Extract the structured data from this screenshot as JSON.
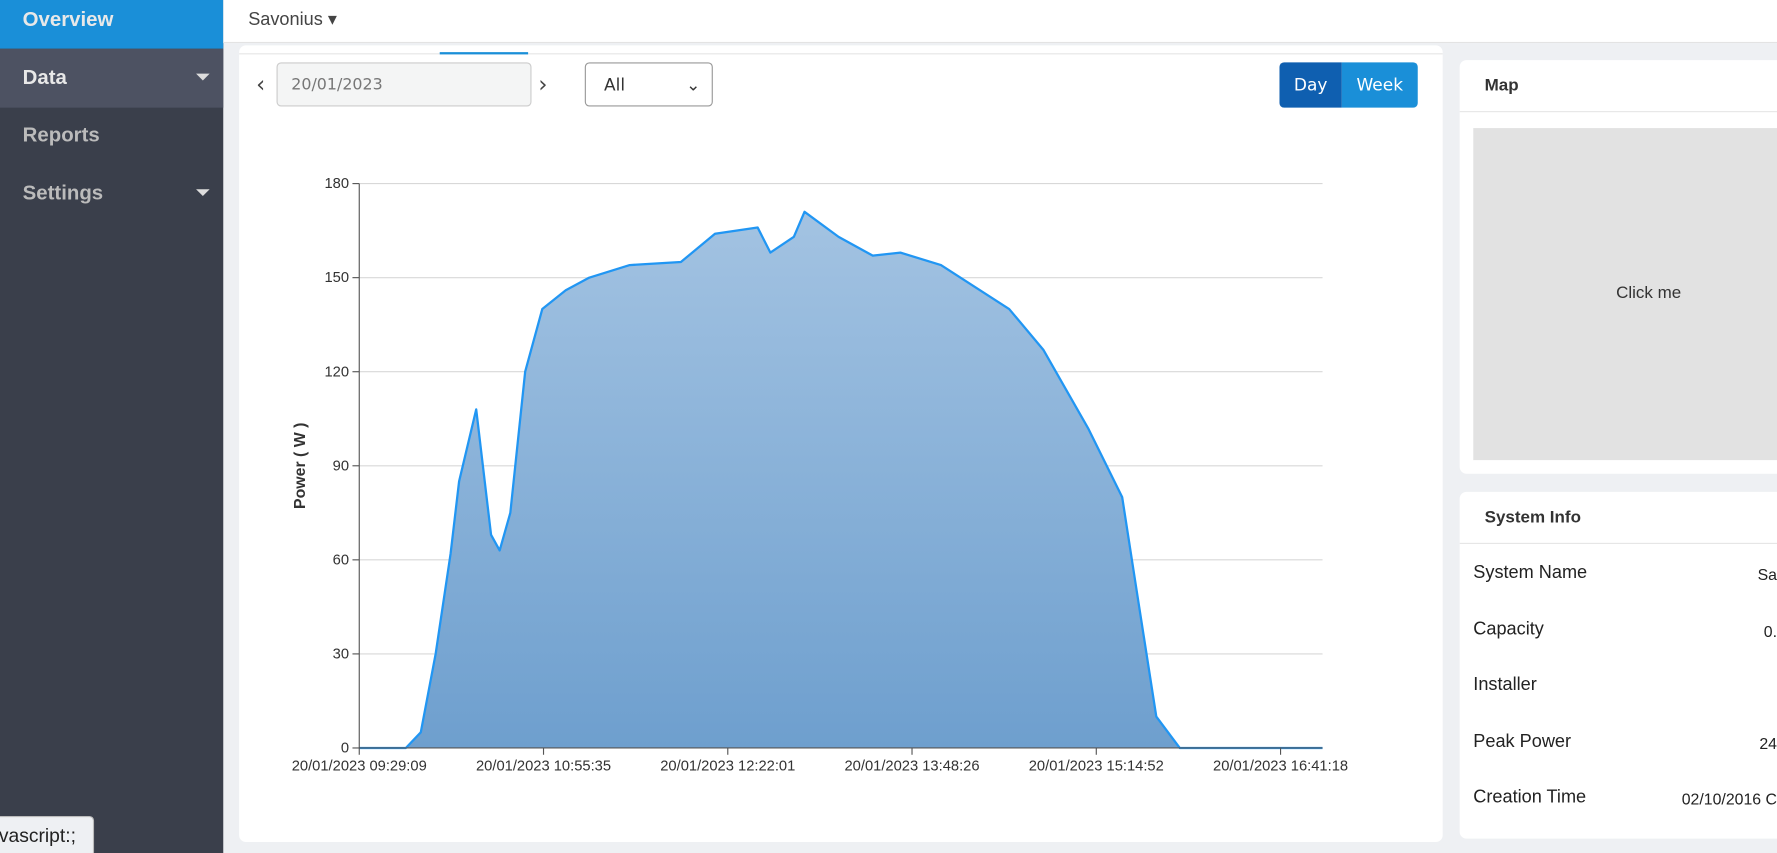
{
  "sidebar": {
    "items": [
      "Overview",
      "Data",
      "Reports",
      "Settings"
    ]
  },
  "header": {
    "site": "Savonius"
  },
  "controls": {
    "date": "20/01/2023",
    "filter": "All",
    "buttons": [
      "Day",
      "Week"
    ]
  },
  "map": {
    "title": "Map",
    "placeholder": "Click me"
  },
  "system_info": {
    "title": "System Info",
    "rows": [
      [
        "System Name",
        "Sa"
      ],
      [
        "Capacity",
        "0."
      ],
      [
        "Installer",
        ""
      ],
      [
        "Peak Power",
        "24"
      ],
      [
        "Creation Time",
        "02/10/2016 C"
      ]
    ]
  },
  "status_bar": "vascript:;",
  "chart_data": {
    "type": "area",
    "y_label": "Power ( W )",
    "color": "#2196f3",
    "x": [
      "20/01/2023 09:29:09",
      "20/01/2023 09:51:00",
      "20/01/2023 09:58:00",
      "20/01/2023 10:05:00",
      "20/01/2023 10:12:00",
      "20/01/2023 10:16:00",
      "20/01/2023 10:24:00",
      "20/01/2023 10:31:00",
      "20/01/2023 10:35:00",
      "20/01/2023 10:40:00",
      "20/01/2023 10:47:00",
      "20/01/2023 10:55:00",
      "20/01/2023 11:06:00",
      "20/01/2023 11:17:00",
      "20/01/2023 11:36:00",
      "20/01/2023 12:00:00",
      "20/01/2023 12:16:00",
      "20/01/2023 12:26:00",
      "20/01/2023 12:36:00",
      "20/01/2023 12:42:00",
      "20/01/2023 12:53:00",
      "20/01/2023 12:58:00",
      "20/01/2023 13:14:00",
      "20/01/2023 13:30:00",
      "20/01/2023 13:43:00",
      "20/01/2023 14:02:00",
      "20/01/2023 14:18:00",
      "20/01/2023 14:34:00",
      "20/01/2023 14:50:00",
      "20/01/2023 15:11:00",
      "20/01/2023 15:27:00",
      "20/01/2023 15:35:00",
      "20/01/2023 15:43:00",
      "20/01/2023 15:54:00",
      "20/01/2023 17:01:00"
    ],
    "values": [
      0,
      0,
      5,
      30,
      62,
      85,
      108,
      68,
      63,
      75,
      120,
      140,
      146,
      150,
      154,
      155,
      164,
      165,
      166,
      158,
      163,
      171,
      163,
      157,
      158,
      154,
      147,
      140,
      127,
      102,
      80,
      45,
      10,
      0,
      0
    ],
    "xlim": [
      "20/01/2023 09:29:09",
      "20/01/2023 17:01:00"
    ],
    "xticks": [
      "20/01/2023 09:29:09",
      "20/01/2023 10:55:35",
      "20/01/2023 12:22:01",
      "20/01/2023 13:48:26",
      "20/01/2023 15:14:52",
      "20/01/2023 16:41:18"
    ],
    "ylim": [
      0,
      180
    ],
    "yticks": [
      0,
      30,
      60,
      90,
      120,
      150,
      180
    ],
    "grid": true
  }
}
